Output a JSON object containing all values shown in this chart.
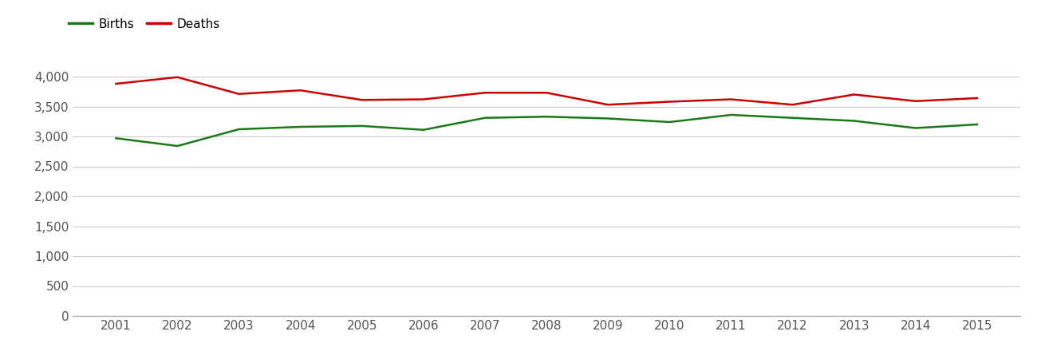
{
  "years": [
    2001,
    2002,
    2003,
    2004,
    2005,
    2006,
    2007,
    2008,
    2009,
    2010,
    2011,
    2012,
    2013,
    2014,
    2015
  ],
  "births": [
    2970,
    2840,
    3120,
    3160,
    3175,
    3110,
    3310,
    3330,
    3300,
    3240,
    3360,
    3310,
    3260,
    3140,
    3200
  ],
  "deaths": [
    3880,
    3990,
    3710,
    3770,
    3610,
    3620,
    3730,
    3730,
    3530,
    3580,
    3620,
    3530,
    3700,
    3590,
    3640
  ],
  "births_color": "#1a7a1a",
  "deaths_color": "#cc0000",
  "line_width": 1.8,
  "ylim": [
    0,
    4200
  ],
  "yticks": [
    0,
    500,
    1000,
    1500,
    2000,
    2500,
    3000,
    3500,
    4000
  ],
  "legend_labels": [
    "Births",
    "Deaths"
  ],
  "background_color": "#ffffff",
  "grid_color": "#cccccc",
  "tick_label_color": "#555555",
  "tick_fontsize": 11,
  "legend_fontsize": 11
}
